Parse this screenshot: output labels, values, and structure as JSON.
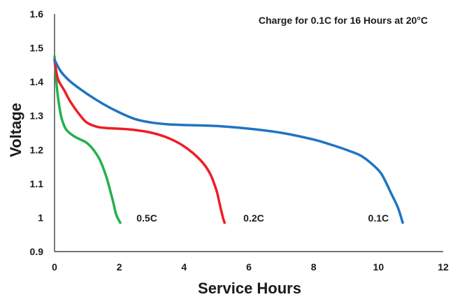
{
  "chart_data": {
    "type": "line",
    "title": "",
    "annotation": "Charge for 0.1C for 16 Hours at 20°C",
    "xlabel": "Service Hours",
    "ylabel": "Voltage",
    "xlim": [
      0,
      12
    ],
    "ylim": [
      0.9,
      1.6
    ],
    "xticks": [
      "0",
      "2",
      "4",
      "6",
      "8",
      "10",
      "12"
    ],
    "yticks": [
      "0.9",
      "1",
      "1.1",
      "1.2",
      "1.3",
      "1.4",
      "1.5",
      "1.6"
    ],
    "grid": false,
    "legend": "none",
    "series": [
      {
        "name": "0.5C",
        "color": "#22b14c",
        "x": [
          0,
          0.05,
          0.1,
          0.2,
          0.3,
          0.4,
          0.6,
          0.8,
          1.0,
          1.2,
          1.4,
          1.6,
          1.8,
          1.9,
          2.0,
          2.03
        ],
        "y": [
          1.475,
          1.41,
          1.36,
          1.3,
          1.27,
          1.255,
          1.24,
          1.23,
          1.22,
          1.2,
          1.17,
          1.12,
          1.05,
          1.01,
          0.99,
          0.985
        ]
      },
      {
        "name": "0.2C",
        "color": "#ee1c24",
        "x": [
          0,
          0.1,
          0.3,
          0.5,
          0.8,
          1.0,
          1.3,
          1.6,
          2.0,
          2.5,
          3.0,
          3.5,
          4.0,
          4.5,
          4.8,
          5.0,
          5.1,
          5.2,
          5.25
        ],
        "y": [
          1.465,
          1.41,
          1.375,
          1.34,
          1.3,
          1.28,
          1.268,
          1.264,
          1.262,
          1.258,
          1.25,
          1.235,
          1.21,
          1.17,
          1.13,
          1.08,
          1.04,
          1.0,
          0.985
        ]
      },
      {
        "name": "0.1C",
        "color": "#1f74c1",
        "x": [
          0,
          0.2,
          0.5,
          1.0,
          1.5,
          2.0,
          2.5,
          3.0,
          3.5,
          4.0,
          5.0,
          6.0,
          7.0,
          8.0,
          8.5,
          9.0,
          9.5,
          10.0,
          10.2,
          10.4,
          10.6,
          10.75
        ],
        "y": [
          1.465,
          1.43,
          1.4,
          1.365,
          1.335,
          1.31,
          1.29,
          1.28,
          1.275,
          1.273,
          1.27,
          1.262,
          1.25,
          1.23,
          1.216,
          1.2,
          1.18,
          1.14,
          1.11,
          1.07,
          1.03,
          0.985
        ]
      }
    ],
    "series_labels": [
      {
        "text": "0.5C",
        "x": 2.85,
        "y": 0.999
      },
      {
        "text": "0.2C",
        "x": 6.15,
        "y": 0.999
      },
      {
        "text": "0.1C",
        "x": 10.0,
        "y": 0.999
      }
    ]
  }
}
